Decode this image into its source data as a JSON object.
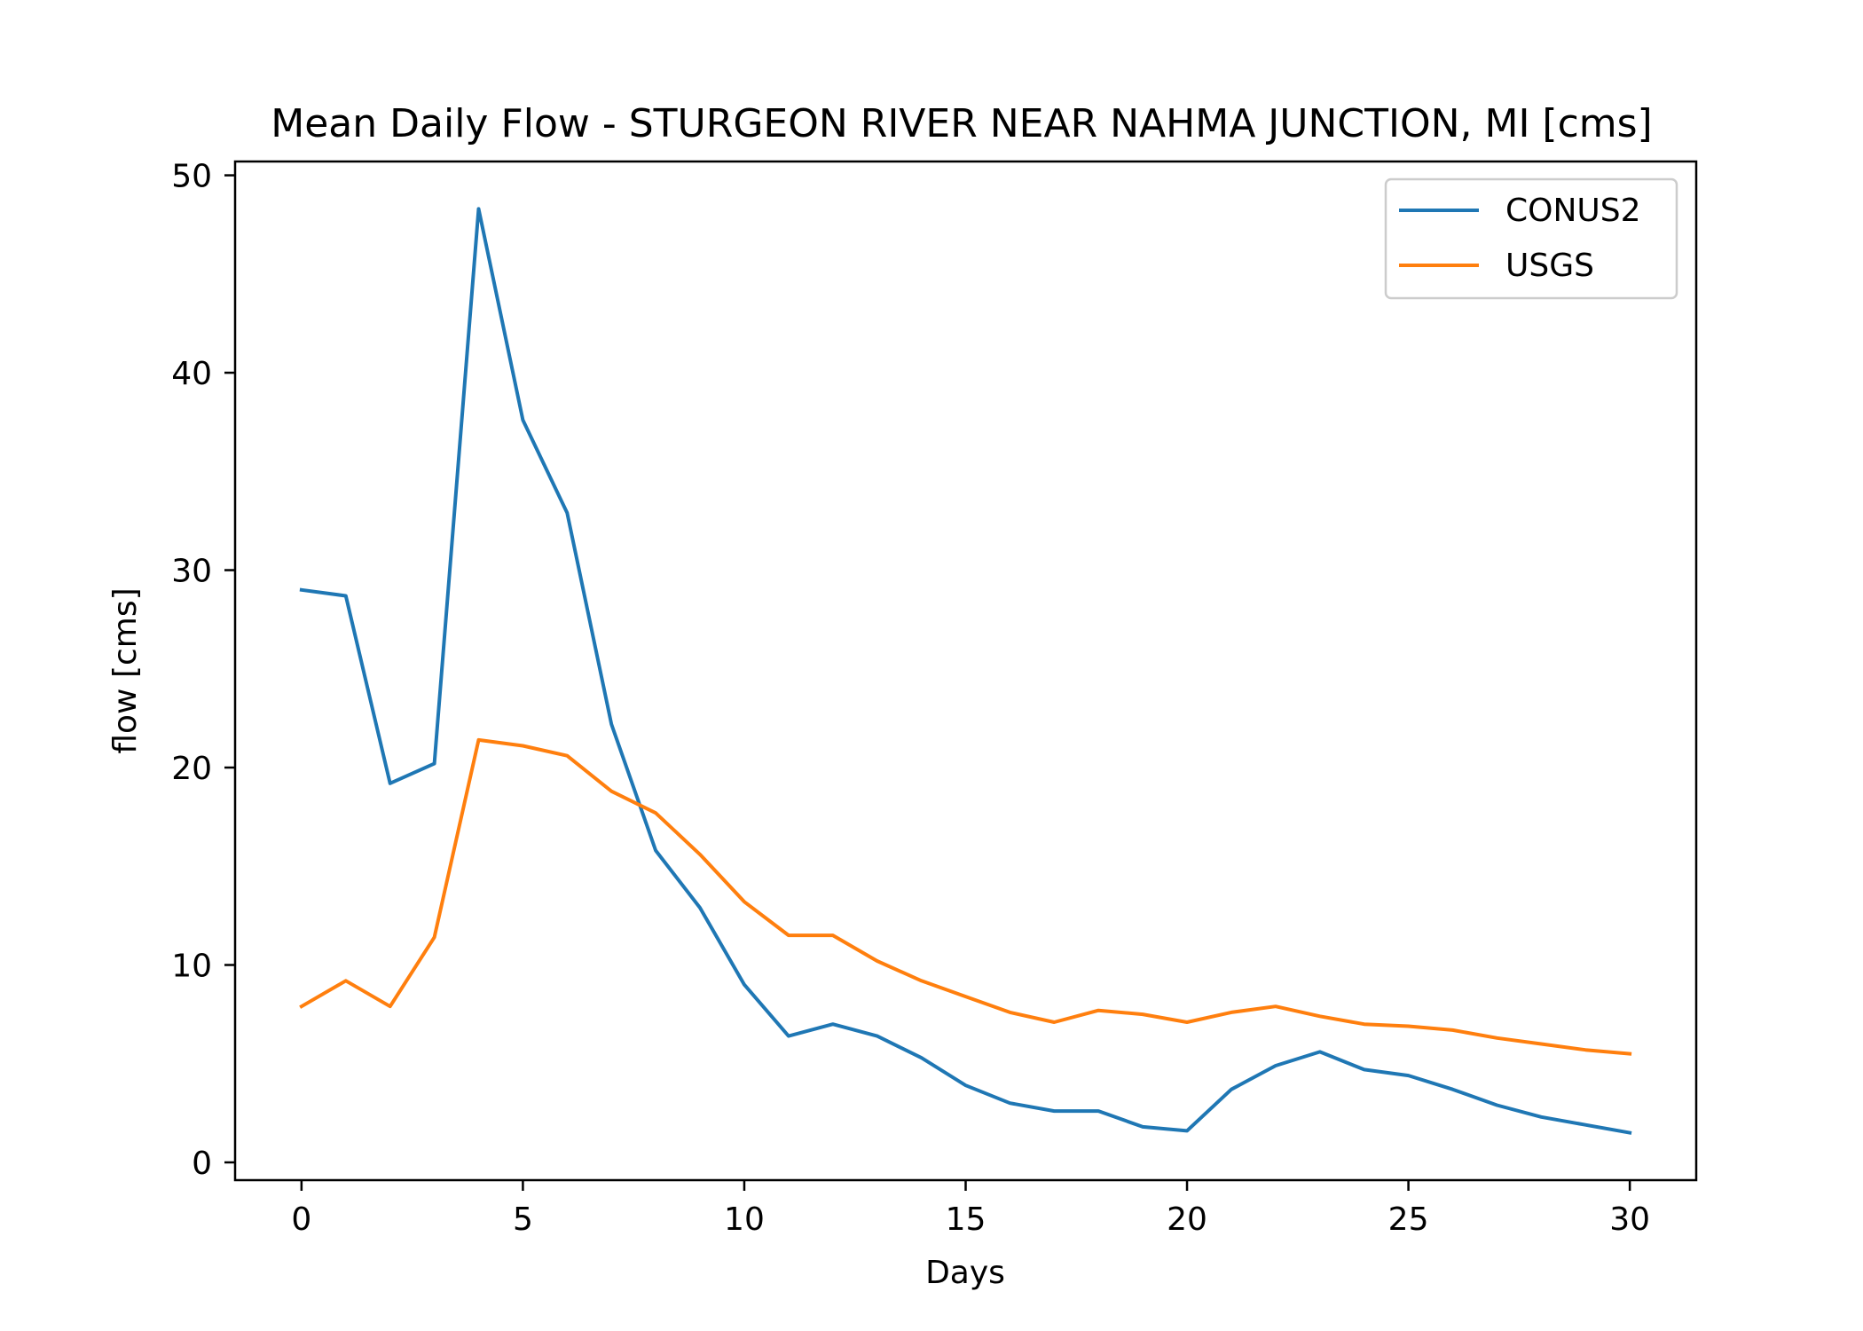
{
  "chart_data": {
    "type": "line",
    "title": "Mean Daily Flow - STURGEON RIVER NEAR NAHMA JUNCTION, MI [cms]",
    "xlabel": "Days",
    "ylabel": "flow [cms]",
    "xlim": [
      -1.5,
      31.5
    ],
    "ylim": [
      -0.9,
      50.7
    ],
    "xticks": [
      0,
      5,
      10,
      15,
      20,
      25,
      30
    ],
    "yticks": [
      0,
      10,
      20,
      30,
      40,
      50
    ],
    "x": [
      0,
      1,
      2,
      3,
      4,
      5,
      6,
      7,
      8,
      9,
      10,
      11,
      12,
      13,
      14,
      15,
      16,
      17,
      18,
      19,
      20,
      21,
      22,
      23,
      24,
      25,
      26,
      27,
      28,
      29,
      30
    ],
    "grid": false,
    "legend_position": "top-right",
    "series": [
      {
        "name": "CONUS2",
        "color": "#1f77b4",
        "values": [
          29.0,
          28.7,
          19.2,
          20.2,
          48.3,
          37.6,
          32.9,
          22.2,
          15.8,
          12.9,
          9.0,
          6.4,
          7.0,
          6.4,
          5.3,
          3.9,
          3.0,
          2.6,
          2.6,
          1.8,
          1.6,
          3.7,
          4.9,
          5.6,
          4.7,
          4.4,
          3.7,
          2.9,
          2.3,
          1.9,
          1.5
        ]
      },
      {
        "name": "USGS",
        "color": "#ff7f0e",
        "values": [
          7.9,
          9.2,
          7.9,
          11.4,
          21.4,
          21.1,
          20.6,
          18.8,
          17.7,
          15.6,
          13.2,
          11.5,
          11.5,
          10.2,
          9.2,
          8.4,
          7.6,
          7.1,
          7.7,
          7.5,
          7.1,
          7.6,
          7.9,
          7.4,
          7.0,
          6.9,
          6.7,
          6.3,
          6.0,
          5.7,
          5.5
        ]
      }
    ]
  }
}
